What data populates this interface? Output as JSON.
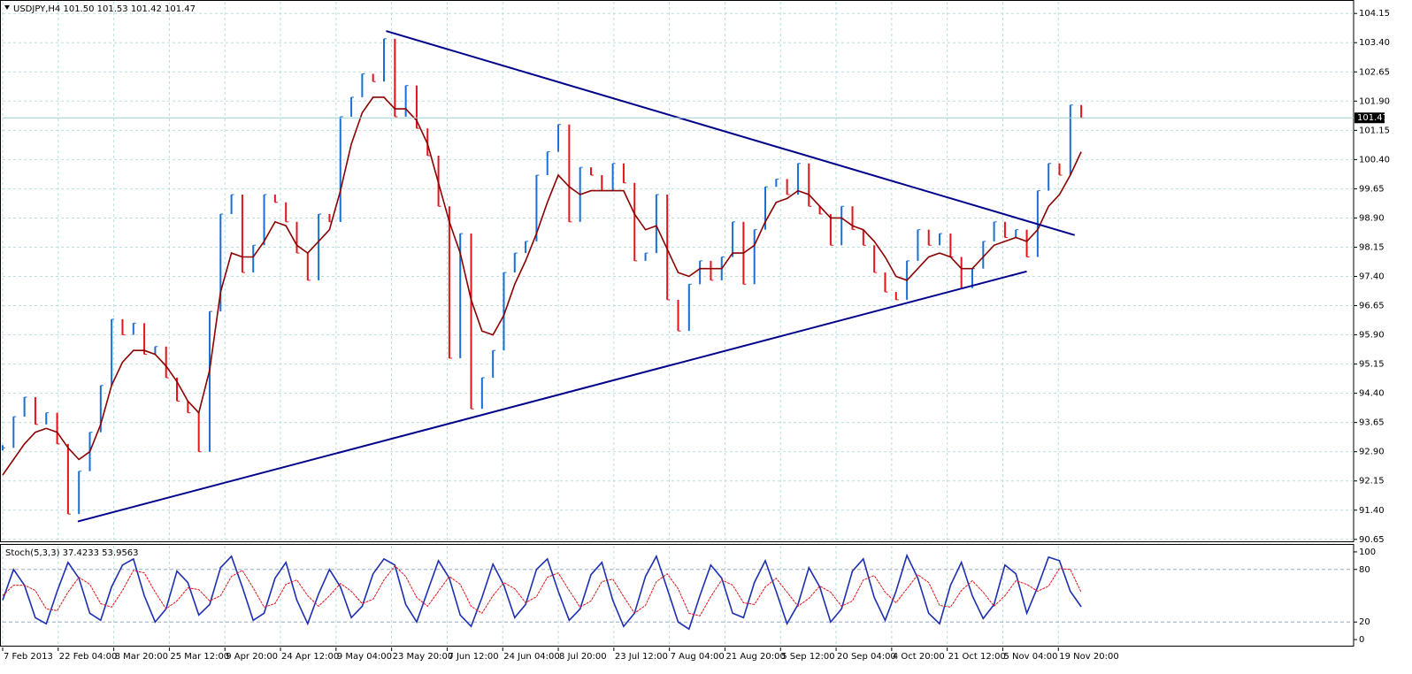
{
  "chart_data": [
    {
      "type": "line",
      "title": "USDJPY,H4  101.50 101.53 101.42 101.47",
      "xlim": [
        0,
        124
      ],
      "xticks": [
        {
          "value": 0,
          "label": "7 Feb 2013"
        },
        {
          "value": 5.1,
          "label": "22 Feb 04:00"
        },
        {
          "value": 10.2,
          "label": "8 Mar 20:00"
        },
        {
          "value": 15.3,
          "label": "25 Mar 12:00"
        },
        {
          "value": 20.4,
          "label": "9 Apr 20:00"
        },
        {
          "value": 25.5,
          "label": "24 Apr 12:00"
        },
        {
          "value": 30.6,
          "label": "9 May 04:00"
        },
        {
          "value": 35.7,
          "label": "23 May 20:00"
        },
        {
          "value": 40.8,
          "label": "7 Jun 12:00"
        },
        {
          "value": 45.9,
          "label": "24 Jun 04:00"
        },
        {
          "value": 51,
          "label": "8 Jul 20:00"
        },
        {
          "value": 56.1,
          "label": "23 Jul 12:00"
        },
        {
          "value": 61.2,
          "label": "7 Aug 04:00"
        },
        {
          "value": 66.3,
          "label": "21 Aug 20:00"
        },
        {
          "value": 71.4,
          "label": "5 Sep 12:00"
        },
        {
          "value": 76.5,
          "label": "20 Sep 04:00"
        },
        {
          "value": 81.6,
          "label": "4 Oct 20:00"
        },
        {
          "value": 86.7,
          "label": "21 Oct 12:00"
        },
        {
          "value": 91.8,
          "label": "5 Nov 04:00"
        },
        {
          "value": 96.9,
          "label": "19 Nov 20:00"
        }
      ],
      "ylim": [
        90.6,
        104.45
      ],
      "yticks": [
        104.15,
        {
          "value": 103.4,
          "label": "103.40"
        },
        102.65,
        {
          "value": 101.9,
          "label": "101.90"
        },
        101.15,
        {
          "value": 100.4,
          "label": "100.40"
        },
        99.65,
        {
          "value": 98.9,
          "label": "98.90"
        },
        98.15,
        {
          "value": 97.4,
          "label": "97.40"
        },
        96.65,
        {
          "value": 95.9,
          "label": "95.90"
        },
        95.15,
        {
          "value": 94.4,
          "label": "94.40"
        },
        93.65,
        {
          "value": 92.9,
          "label": "92.90"
        },
        92.15,
        {
          "value": 91.4,
          "label": "91.40"
        },
        90.65
      ],
      "grid": true,
      "up_color": "#1a6fd4",
      "down_color": "#e3141b",
      "series": [
        {
          "style": "bars",
          "color": "#1a6fd4",
          "values": [
            93.0,
            93.8,
            94.3,
            93.6,
            93.9,
            93.1,
            91.3,
            92.4,
            93.4,
            94.6,
            96.3,
            95.9,
            96.2,
            95.4,
            95.6,
            94.8,
            94.2,
            93.9,
            92.9,
            96.5,
            99.0,
            99.5,
            97.5,
            98.2,
            99.5,
            99.3,
            98.8,
            98.0,
            97.3,
            99.0,
            98.8,
            101.5,
            102.0,
            102.6,
            102.4,
            103.5,
            101.5,
            102.3,
            101.2,
            100.5,
            99.2,
            95.3,
            98.5,
            94.0,
            94.8,
            95.5,
            97.5,
            98.0,
            98.3,
            100.0,
            100.6,
            101.3,
            98.8,
            100.2,
            100.0,
            99.6,
            100.3,
            99.8,
            97.8,
            98.0,
            99.5,
            96.8,
            96.0,
            97.2,
            97.8,
            97.3,
            97.9,
            98.8,
            97.2,
            98.6,
            99.7,
            99.9,
            99.5,
            100.3,
            99.2,
            99.0,
            98.2,
            99.2,
            98.6,
            98.2,
            97.5,
            97.0,
            96.8,
            97.8,
            98.6,
            98.2,
            98.5,
            97.9,
            97.1,
            97.6,
            98.3,
            98.8,
            98.4,
            98.6,
            97.9,
            99.6,
            100.3,
            100.0,
            101.8,
            101.47
          ]
        },
        {
          "style": "line",
          "color": "#8b0000",
          "values": [
            92.3,
            92.7,
            93.1,
            93.4,
            93.5,
            93.4,
            93.0,
            92.7,
            92.9,
            93.6,
            94.6,
            95.2,
            95.5,
            95.5,
            95.4,
            95.1,
            94.7,
            94.2,
            93.9,
            95.0,
            97.0,
            98.0,
            97.9,
            97.9,
            98.3,
            98.8,
            98.7,
            98.2,
            98.0,
            98.3,
            98.6,
            99.6,
            100.8,
            101.6,
            102.0,
            102.0,
            101.7,
            101.7,
            101.4,
            100.8,
            99.8,
            98.8,
            98.0,
            96.8,
            96.0,
            95.9,
            96.4,
            97.2,
            97.8,
            98.5,
            99.3,
            100.0,
            99.7,
            99.5,
            99.6,
            99.6,
            99.6,
            99.6,
            99.0,
            98.6,
            98.7,
            98.1,
            97.5,
            97.4,
            97.6,
            97.6,
            97.6,
            98.0,
            98.0,
            98.2,
            98.8,
            99.3,
            99.4,
            99.6,
            99.5,
            99.2,
            98.9,
            98.9,
            98.7,
            98.6,
            98.3,
            97.9,
            97.4,
            97.3,
            97.6,
            97.9,
            98.0,
            97.9,
            97.6,
            97.6,
            97.9,
            98.2,
            98.3,
            98.4,
            98.3,
            98.6,
            99.2,
            99.5,
            100.0,
            100.6
          ]
        }
      ],
      "trendlines": [
        {
          "color": "#00008b",
          "x": [
            35.2,
            98.4
          ],
          "values": [
            103.7,
            98.46
          ]
        },
        {
          "color": "#00008b",
          "x": [
            6.9,
            94
          ],
          "values": [
            91.11,
            97.53
          ]
        }
      ],
      "last_price": 101.47
    },
    {
      "type": "line",
      "title": "Stoch(5,3,3) 37.4233 53.9563",
      "ylim": [
        -7,
        107
      ],
      "yticks": [
        100,
        80,
        20,
        0
      ],
      "levels": [
        80,
        20
      ],
      "series": [
        {
          "style": "line",
          "color": "#1c2fb0",
          "values": [
            45,
            80,
            62,
            25,
            18,
            55,
            88,
            70,
            30,
            22,
            60,
            85,
            92,
            50,
            20,
            35,
            78,
            65,
            28,
            40,
            82,
            95,
            60,
            22,
            30,
            70,
            88,
            45,
            18,
            52,
            80,
            60,
            25,
            38,
            75,
            92,
            85,
            40,
            20,
            55,
            90,
            70,
            28,
            15,
            48,
            86,
            62,
            25,
            40,
            80,
            92,
            55,
            22,
            35,
            74,
            88,
            45,
            15,
            30,
            72,
            95,
            58,
            20,
            12,
            50,
            85,
            70,
            30,
            25,
            65,
            90,
            55,
            18,
            40,
            82,
            60,
            20,
            35,
            78,
            92,
            48,
            22,
            55,
            96,
            70,
            30,
            18,
            62,
            88,
            50,
            24,
            40,
            85,
            75,
            30,
            60,
            94,
            90,
            55,
            37.42
          ]
        },
        {
          "style": "dash",
          "color": "#e3141b",
          "values": [
            50,
            62,
            62,
            56,
            35,
            33,
            54,
            71,
            63,
            41,
            37,
            56,
            79,
            76,
            54,
            35,
            44,
            59,
            57,
            44,
            50,
            72,
            79,
            59,
            37,
            41,
            63,
            68,
            50,
            38,
            50,
            64,
            55,
            41,
            46,
            68,
            84,
            72,
            48,
            38,
            55,
            72,
            63,
            38,
            30,
            50,
            65,
            58,
            42,
            49,
            71,
            76,
            56,
            37,
            44,
            66,
            69,
            49,
            30,
            39,
            66,
            75,
            58,
            30,
            27,
            49,
            68,
            62,
            42,
            40,
            60,
            70,
            54,
            38,
            47,
            61,
            54,
            38,
            44,
            68,
            73,
            54,
            42,
            58,
            74,
            65,
            39,
            37,
            56,
            67,
            54,
            38,
            50,
            67,
            63,
            55,
            61,
            81,
            80,
            53.96
          ]
        }
      ]
    }
  ]
}
